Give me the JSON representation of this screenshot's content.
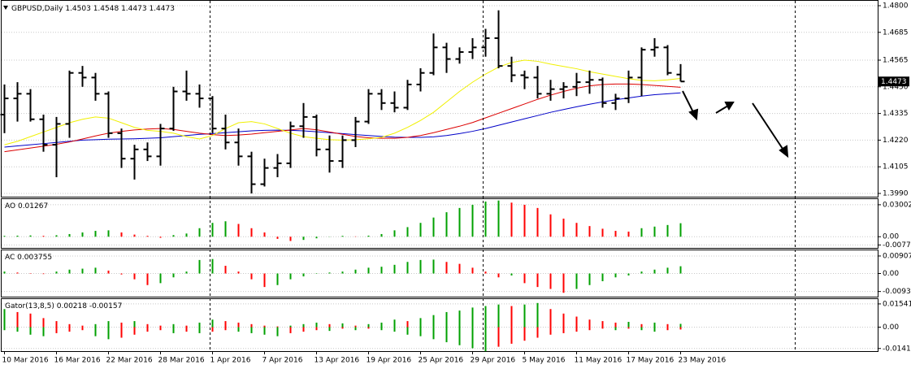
{
  "chart_data": [
    {
      "type": "ohlc",
      "title": "GBPUSD,Daily",
      "color": "#000000",
      "categories": [
        "10 Mar 2016",
        null,
        null,
        null,
        "16 Mar 2016",
        null,
        null,
        null,
        "22 Mar 2016",
        null,
        null,
        null,
        "28 Mar 2016",
        null,
        null,
        null,
        "1 Apr 2016",
        null,
        null,
        null,
        "7 Apr 2016",
        null,
        null,
        null,
        "13 Apr 2016",
        null,
        null,
        null,
        "19 Apr 2016",
        null,
        null,
        null,
        "25 Apr 2016",
        null,
        null,
        null,
        "29 Apr 2016",
        null,
        null,
        null,
        "5 May 2016",
        null,
        null,
        null,
        "11 May 2016",
        null,
        null,
        null,
        "17 May 2016",
        null,
        null,
        null,
        "23 May 2016"
      ],
      "open": [
        1.433,
        1.44,
        1.442,
        1.431,
        1.42,
        1.429,
        1.451,
        1.449,
        1.442,
        1.425,
        1.414,
        1.418,
        1.415,
        1.427,
        1.443,
        1.442,
        1.44,
        1.427,
        1.421,
        1.415,
        1.403,
        1.41,
        1.412,
        1.428,
        1.432,
        1.418,
        1.413,
        1.422,
        1.43,
        1.442,
        1.438,
        1.436,
        1.446,
        1.451,
        1.462,
        1.457,
        1.46,
        1.462,
        1.466,
        1.454,
        1.45,
        1.449,
        1.442,
        1.444,
        1.445,
        1.447,
        1.448,
        1.438,
        1.44,
        1.449,
        1.461,
        1.462,
        1.4503
      ],
      "high": [
        1.446,
        1.447,
        1.444,
        1.433,
        1.432,
        1.452,
        1.454,
        1.451,
        1.443,
        1.427,
        1.42,
        1.421,
        1.429,
        1.445,
        1.452,
        1.446,
        1.441,
        1.433,
        1.427,
        1.417,
        1.414,
        1.416,
        1.43,
        1.438,
        1.433,
        1.424,
        1.424,
        1.432,
        1.444,
        1.444,
        1.443,
        1.448,
        1.453,
        1.468,
        1.464,
        1.462,
        1.466,
        1.47,
        1.478,
        1.458,
        1.452,
        1.454,
        1.448,
        1.447,
        1.451,
        1.452,
        1.449,
        1.442,
        1.452,
        1.462,
        1.466,
        1.463,
        1.4548
      ],
      "low": [
        1.425,
        1.43,
        1.43,
        1.417,
        1.406,
        1.423,
        1.445,
        1.439,
        1.423,
        1.41,
        1.405,
        1.413,
        1.411,
        1.426,
        1.439,
        1.436,
        1.425,
        1.418,
        1.411,
        1.399,
        1.402,
        1.406,
        1.41,
        1.423,
        1.415,
        1.408,
        1.41,
        1.419,
        1.429,
        1.435,
        1.434,
        1.435,
        1.443,
        1.45,
        1.451,
        1.455,
        1.457,
        1.458,
        1.453,
        1.447,
        1.444,
        1.44,
        1.439,
        1.44,
        1.441,
        1.442,
        1.436,
        1.435,
        1.438,
        1.441,
        1.458,
        1.45,
        1.4473
      ],
      "close": [
        1.44,
        1.442,
        1.431,
        1.42,
        1.429,
        1.451,
        1.449,
        1.442,
        1.425,
        1.414,
        1.418,
        1.415,
        1.427,
        1.443,
        1.442,
        1.44,
        1.427,
        1.421,
        1.415,
        1.403,
        1.41,
        1.412,
        1.428,
        1.432,
        1.418,
        1.413,
        1.422,
        1.43,
        1.442,
        1.438,
        1.436,
        1.446,
        1.451,
        1.462,
        1.457,
        1.46,
        1.462,
        1.466,
        1.454,
        1.45,
        1.449,
        1.442,
        1.444,
        1.445,
        1.447,
        1.448,
        1.438,
        1.44,
        1.449,
        1.461,
        1.462,
        1.451,
        1.4473
      ],
      "lines": [
        {
          "color": "#0000c8",
          "values": [
            1.419,
            1.4195,
            1.42,
            1.4205,
            1.421,
            1.4215,
            1.422,
            1.4222,
            1.4224,
            1.4225,
            1.4226,
            1.4228,
            1.423,
            1.4235,
            1.424,
            1.4245,
            1.4248,
            1.4252,
            1.4256,
            1.426,
            1.4262,
            1.4263,
            1.4262,
            1.426,
            1.4256,
            1.4252,
            1.4248,
            1.4244,
            1.424,
            1.4236,
            1.4233,
            1.4232,
            1.4232,
            1.4234,
            1.424,
            1.4248,
            1.4258,
            1.427,
            1.4284,
            1.4298,
            1.4312,
            1.4326,
            1.434,
            1.4352,
            1.4364,
            1.4375,
            1.4385,
            1.4394,
            1.4402,
            1.441,
            1.4416,
            1.442,
            1.4424
          ]
        },
        {
          "color": "#dc0000",
          "values": [
            1.417,
            1.4178,
            1.4186,
            1.4194,
            1.4202,
            1.4212,
            1.4225,
            1.4238,
            1.425,
            1.4258,
            1.4264,
            1.4268,
            1.427,
            1.4266,
            1.4258,
            1.425,
            1.4244,
            1.424,
            1.4242,
            1.4246,
            1.4252,
            1.4258,
            1.4264,
            1.427,
            1.4265,
            1.4255,
            1.4245,
            1.4236,
            1.423,
            1.4228,
            1.4228,
            1.4232,
            1.424,
            1.4252,
            1.4266,
            1.428,
            1.4296,
            1.4316,
            1.4336,
            1.4356,
            1.4376,
            1.4396,
            1.4414,
            1.443,
            1.4444,
            1.4454,
            1.446,
            1.4462,
            1.4462,
            1.446,
            1.4456,
            1.4452,
            1.4448
          ]
        },
        {
          "color": "#f0f000",
          "values": [
            1.42,
            1.4215,
            1.4235,
            1.4255,
            1.4275,
            1.4295,
            1.431,
            1.432,
            1.4315,
            1.4295,
            1.4275,
            1.4262,
            1.4258,
            1.425,
            1.4235,
            1.4225,
            1.424,
            1.427,
            1.4295,
            1.43,
            1.429,
            1.427,
            1.425,
            1.4235,
            1.4228,
            1.4222,
            1.422,
            1.4222,
            1.4226,
            1.4232,
            1.425,
            1.4275,
            1.4305,
            1.434,
            1.4385,
            1.443,
            1.447,
            1.4505,
            1.4535,
            1.4555,
            1.4565,
            1.456,
            1.4548,
            1.4538,
            1.4528,
            1.4515,
            1.4505,
            1.4495,
            1.4485,
            1.4478,
            1.4476,
            1.448,
            1.4486
          ]
        }
      ],
      "ylim": [
        1.3976,
        1.4821
      ],
      "yticks": [
        {
          "value": 1.48,
          "label": "1.4800"
        },
        1.4685,
        1.4565,
        {
          "value": 1.445,
          "label": "1.4450"
        },
        1.4335,
        {
          "value": 1.422,
          "label": "1.4220"
        },
        1.4105,
        {
          "value": 1.399,
          "label": "1.3990"
        }
      ]
    },
    {
      "type": "histogram",
      "title": "AO",
      "up_color": "#00a000",
      "down_color": "#ff0000",
      "values": [
        0.0008,
        0.001,
        0.0012,
        0.0008,
        0.0014,
        0.0025,
        0.004,
        0.0055,
        0.006,
        0.004,
        0.002,
        0.0008,
        -0.001,
        0.0015,
        0.003,
        0.008,
        0.013,
        0.0145,
        0.012,
        0.008,
        0.004,
        -0.002,
        -0.004,
        -0.003,
        -0.0015,
        0.0002,
        0.0008,
        0.0003,
        0.001,
        0.0025,
        0.006,
        0.009,
        0.013,
        0.018,
        0.023,
        0.027,
        0.03,
        0.033,
        0.034,
        0.032,
        0.03,
        0.027,
        0.021,
        0.017,
        0.013,
        0.01,
        0.0075,
        0.0055,
        0.0048,
        0.008,
        0.0095,
        0.011,
        0.01267
      ],
      "ylim": [
        -0.0105,
        0.0353
      ],
      "yticks": [
        0.03002,
        {
          "value": 0,
          "label": "0.00"
        },
        -0.00774
      ]
    },
    {
      "type": "histogram",
      "title": "AC",
      "up_color": "#00a000",
      "down_color": "#ff0000",
      "values": [
        0.001,
        0.0005,
        0.0002,
        -0.0003,
        0.001,
        0.002,
        0.0025,
        0.003,
        0.0015,
        -0.0005,
        -0.003,
        -0.006,
        -0.005,
        -0.002,
        0.001,
        0.007,
        0.0075,
        0.004,
        0.001,
        -0.003,
        -0.007,
        -0.006,
        -0.003,
        -0.0015,
        0.0002,
        0.0005,
        0.001,
        0.002,
        0.003,
        0.0035,
        0.0045,
        0.006,
        0.007,
        0.0072,
        0.006,
        0.005,
        0.003,
        0.001,
        -0.002,
        -0.001,
        -0.005,
        -0.007,
        -0.008,
        -0.01,
        -0.008,
        -0.006,
        -0.004,
        -0.002,
        -0.001,
        0.001,
        0.002,
        0.003,
        0.003755
      ],
      "ylim": [
        -0.012,
        0.012
      ],
      "yticks": [
        0.009072,
        {
          "value": 0,
          "label": "0.00"
        },
        -0.00933
      ]
    },
    {
      "type": "gator",
      "title": "Gator(13,8,5)",
      "up_color": "#00a000",
      "down_color": "#ff0000",
      "upper": [
        0.012,
        0.01,
        0.009,
        0.006,
        0.004,
        0.002,
        0.001,
        0.002,
        0.004,
        0.003,
        0.004,
        0.002,
        0.001,
        0.002,
        0.001,
        0.003,
        0.005,
        0.004,
        0.003,
        0.002,
        0.001,
        0.0005,
        0.001,
        0.002,
        0.003,
        0.002,
        0.0025,
        0.001,
        0.002,
        0.003,
        0.005,
        0.004,
        0.006,
        0.008,
        0.01,
        0.011,
        0.013,
        0.014,
        0.015,
        0.014,
        0.015,
        0.016,
        0.012,
        0.009,
        0.007,
        0.005,
        0.004,
        0.003,
        0.0035,
        0.002,
        0.003,
        0.002,
        0.00218
      ],
      "lower": [
        -0.002,
        -0.003,
        -0.005,
        -0.006,
        -0.004,
        -0.003,
        -0.002,
        -0.006,
        -0.008,
        -0.007,
        -0.005,
        -0.003,
        -0.002,
        -0.004,
        -0.003,
        -0.004,
        -0.003,
        -0.002,
        -0.003,
        -0.004,
        -0.005,
        -0.006,
        -0.004,
        -0.003,
        -0.002,
        -0.0025,
        -0.001,
        -0.002,
        -0.001,
        -0.002,
        -0.003,
        -0.005,
        -0.006,
        -0.008,
        -0.01,
        -0.012,
        -0.014,
        -0.016,
        -0.013,
        -0.011,
        -0.009,
        -0.007,
        -0.005,
        -0.004,
        -0.003,
        -0.002,
        -0.001,
        -0.002,
        -0.001,
        -0.002,
        -0.003,
        -0.002,
        -0.00157
      ],
      "ylim": [
        -0.0159,
        0.0186
      ],
      "yticks": [
        0.01541,
        {
          "value": 0,
          "label": "0.00"
        },
        -0.01415
      ]
    }
  ]
}
